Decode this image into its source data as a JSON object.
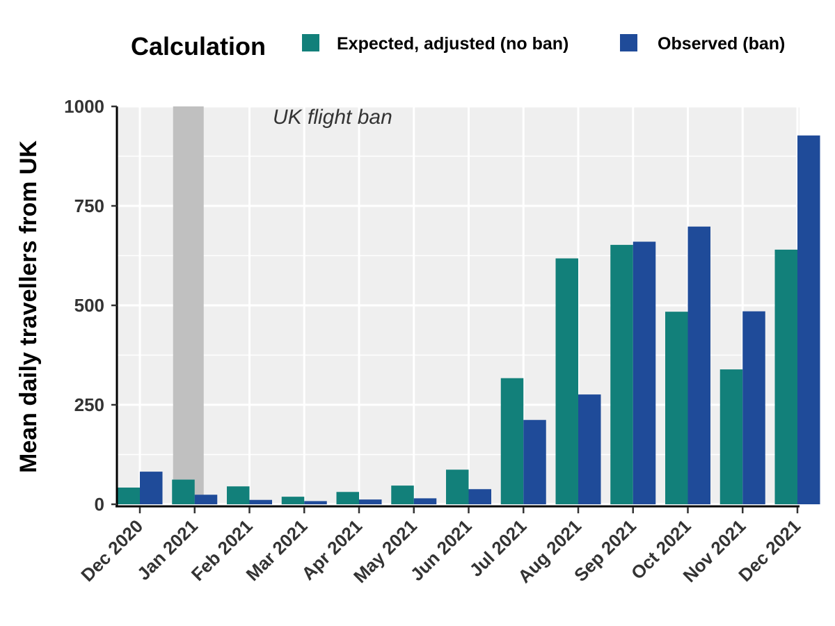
{
  "chart_data": {
    "type": "bar",
    "title": "",
    "xlabel": "",
    "ylabel": "Mean daily travellers from UK",
    "ylim": [
      0,
      1000
    ],
    "yticks": [
      0,
      250,
      500,
      750,
      1000
    ],
    "grid": true,
    "legend": {
      "title": "Calculation",
      "position": "top-right"
    },
    "categories": [
      "Dec 2020",
      "Jan 2021",
      "Feb 2021",
      "Mar 2021",
      "Apr 2021",
      "May 2021",
      "Jun 2021",
      "Jul 2021",
      "Aug 2021",
      "Sep 2021",
      "Oct 2021",
      "Nov 2021",
      "Dec 2021"
    ],
    "series": [
      {
        "name": "Expected, adjusted (no ban)",
        "color": "#12807A",
        "values": [
          42,
          62,
          45,
          19,
          31,
          47,
          87,
          317,
          618,
          652,
          484,
          339,
          640
        ]
      },
      {
        "name": "Observed (ban)",
        "color": "#1F4B99",
        "values": [
          82,
          24,
          11,
          8,
          12,
          15,
          38,
          212,
          276,
          660,
          698,
          485,
          927
        ]
      }
    ],
    "shaded_period": {
      "category": "Jan 2021",
      "color": "#C0C0C0"
    },
    "annotation": {
      "text": "UK flight ban"
    }
  }
}
